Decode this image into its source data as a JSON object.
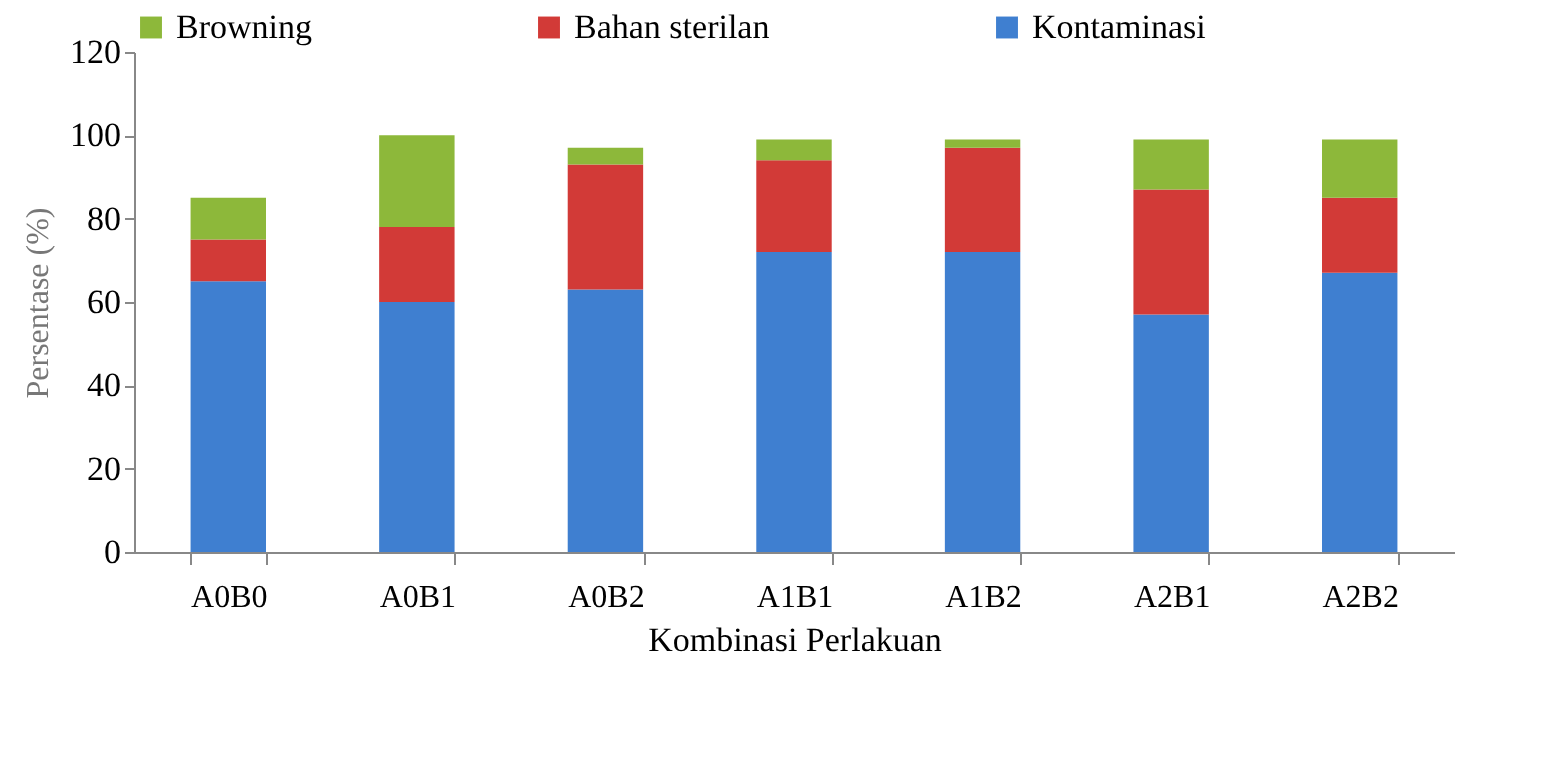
{
  "chart_data": {
    "type": "bar",
    "stacked": true,
    "categories": [
      "A0B0",
      "A0B1",
      "A0B2",
      "A1B1",
      "A1B2",
      "A2B1",
      "A2B2"
    ],
    "series": [
      {
        "name": "Kontaminasi",
        "color": "#3f7fd0",
        "values": [
          65,
          60,
          63,
          72,
          72,
          57,
          67
        ]
      },
      {
        "name": "Bahan sterilan",
        "color": "#d23a37",
        "values": [
          10,
          18,
          30,
          22,
          25,
          30,
          18
        ]
      },
      {
        "name": "Browning",
        "color": "#8db83a",
        "values": [
          10,
          22,
          4,
          5,
          2,
          12,
          14
        ]
      }
    ],
    "xlabel": "Kombinasi Perlakuan",
    "ylabel": "Persentase (%)",
    "ylim": [
      0,
      120
    ],
    "yticks": [
      0,
      20,
      40,
      60,
      80,
      100,
      120
    ],
    "grid": false,
    "legend": "top"
  }
}
